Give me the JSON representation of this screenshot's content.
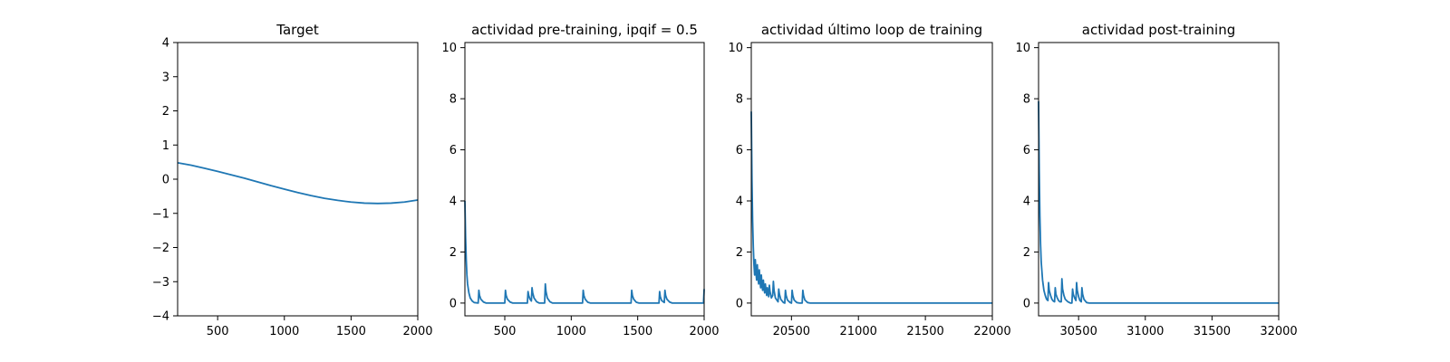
{
  "chart_data": [
    {
      "type": "line",
      "title": "Target",
      "xlabel": "",
      "ylabel": "",
      "xlim": [
        200,
        2000
      ],
      "ylim": [
        -4,
        4
      ],
      "xticks": [
        "500",
        "1000",
        "1500",
        "2000"
      ],
      "yticks": [
        "-4",
        "-3",
        "-2",
        "-1",
        "0",
        "1",
        "2",
        "3",
        "4"
      ],
      "grid": false,
      "series": [
        {
          "x": [
            200,
            300,
            400,
            500,
            600,
            700,
            800,
            900,
            1000,
            1100,
            1200,
            1300,
            1400,
            1500,
            1600,
            1700,
            1800,
            1900,
            2000
          ],
          "y": [
            0.48,
            0.41,
            0.32,
            0.23,
            0.13,
            0.03,
            -0.08,
            -0.19,
            -0.29,
            -0.39,
            -0.48,
            -0.56,
            -0.62,
            -0.67,
            -0.7,
            -0.71,
            -0.7,
            -0.67,
            -0.61
          ]
        }
      ]
    },
    {
      "type": "line",
      "title": "actividad pre-training, ipqif = 0.5",
      "xlabel": "",
      "ylabel": "",
      "xlim": [
        200,
        2000
      ],
      "ylim": [
        -0.5,
        10.2
      ],
      "xticks": [
        "500",
        "1000",
        "1500",
        "2000"
      ],
      "yticks": [
        "0",
        "2",
        "4",
        "6",
        "8",
        "10"
      ],
      "grid": false,
      "series": [
        {
          "x": [
            200,
            205,
            210,
            215,
            220,
            230,
            240,
            255,
            270,
            300,
            305,
            310,
            320,
            340,
            360,
            500,
            505,
            510,
            520,
            540,
            560,
            670,
            675,
            680,
            690,
            700,
            705,
            710,
            720,
            740,
            760,
            800,
            805,
            810,
            820,
            840,
            860,
            1085,
            1090,
            1095,
            1105,
            1125,
            1145,
            1450,
            1455,
            1460,
            1470,
            1490,
            1510,
            1660,
            1665,
            1670,
            1680,
            1700,
            1705,
            1710,
            1720,
            1740,
            1760,
            1995,
            2000
          ],
          "y": [
            4.0,
            2.6,
            1.7,
            1.1,
            0.75,
            0.4,
            0.2,
            0.08,
            0.02,
            0.0,
            0.5,
            0.3,
            0.15,
            0.04,
            0.0,
            0.0,
            0.5,
            0.3,
            0.15,
            0.04,
            0.0,
            0.0,
            0.45,
            0.3,
            0.15,
            0.08,
            0.6,
            0.4,
            0.2,
            0.05,
            0.0,
            0.0,
            0.75,
            0.45,
            0.2,
            0.05,
            0.0,
            0.0,
            0.5,
            0.3,
            0.15,
            0.03,
            0.0,
            0.0,
            0.5,
            0.3,
            0.15,
            0.03,
            0.0,
            0.0,
            0.45,
            0.25,
            0.1,
            0.02,
            0.5,
            0.3,
            0.15,
            0.04,
            0.0,
            0.0,
            0.55
          ]
        }
      ]
    },
    {
      "type": "line",
      "title": "actividad último loop de training",
      "xlabel": "",
      "ylabel": "",
      "xlim": [
        20200,
        22000
      ],
      "ylim": [
        -0.5,
        10.2
      ],
      "xticks": [
        "20500",
        "21000",
        "21500",
        "22000"
      ],
      "yticks": [
        "0",
        "2",
        "4",
        "6",
        "8",
        "10"
      ],
      "grid": false,
      "series": [
        {
          "x": [
            20200,
            20205,
            20210,
            20215,
            20220,
            20225,
            20230,
            20235,
            20240,
            20245,
            20250,
            20255,
            20260,
            20265,
            20270,
            20275,
            20280,
            20285,
            20290,
            20295,
            20300,
            20305,
            20310,
            20315,
            20320,
            20330,
            20335,
            20340,
            20350,
            20360,
            20365,
            20370,
            20380,
            20400,
            20405,
            20410,
            20420,
            20440,
            20450,
            20455,
            20460,
            20470,
            20490,
            20500,
            20505,
            20510,
            20520,
            20540,
            20560,
            20580,
            20585,
            20590,
            20600,
            20620,
            20640,
            22000
          ],
          "y": [
            7.5,
            4.8,
            3.2,
            2.2,
            1.5,
            1.1,
            1.7,
            1.2,
            0.9,
            1.5,
            1.0,
            0.75,
            1.3,
            0.9,
            0.6,
            1.1,
            0.7,
            0.5,
            0.9,
            0.6,
            0.4,
            0.75,
            0.5,
            0.3,
            0.6,
            0.25,
            0.7,
            0.45,
            0.2,
            0.3,
            0.85,
            0.5,
            0.2,
            0.05,
            0.55,
            0.35,
            0.15,
            0.02,
            0.0,
            0.5,
            0.3,
            0.12,
            0.02,
            0.0,
            0.5,
            0.3,
            0.12,
            0.02,
            0.0,
            0.0,
            0.5,
            0.3,
            0.12,
            0.02,
            0.0,
            0.0
          ]
        }
      ]
    },
    {
      "type": "line",
      "title": "actividad post-training",
      "xlabel": "",
      "ylabel": "",
      "xlim": [
        30200,
        32000
      ],
      "ylim": [
        -0.5,
        10.2
      ],
      "xticks": [
        "30500",
        "31000",
        "31500",
        "32000"
      ],
      "yticks": [
        "0",
        "2",
        "4",
        "6",
        "8",
        "10"
      ],
      "grid": false,
      "series": [
        {
          "x": [
            30200,
            30205,
            30210,
            30215,
            30220,
            30230,
            30240,
            30250,
            30260,
            30270,
            30275,
            30280,
            30290,
            30300,
            30310,
            30320,
            30325,
            30330,
            30340,
            30350,
            30360,
            30370,
            30375,
            30380,
            30390,
            30400,
            30420,
            30440,
            30450,
            30455,
            30460,
            30470,
            30480,
            30485,
            30490,
            30500,
            30510,
            30520,
            30525,
            30530,
            30540,
            30560,
            30580,
            32000
          ],
          "y": [
            7.9,
            5.2,
            3.4,
            2.3,
            1.6,
            0.9,
            0.5,
            0.3,
            0.15,
            0.1,
            0.8,
            0.5,
            0.3,
            0.15,
            0.08,
            0.05,
            0.6,
            0.35,
            0.2,
            0.1,
            0.05,
            0.05,
            0.95,
            0.55,
            0.3,
            0.15,
            0.05,
            0.0,
            0.0,
            0.55,
            0.35,
            0.2,
            0.1,
            0.8,
            0.5,
            0.25,
            0.1,
            0.05,
            0.6,
            0.35,
            0.15,
            0.02,
            0.0,
            0.0
          ]
        }
      ]
    }
  ]
}
